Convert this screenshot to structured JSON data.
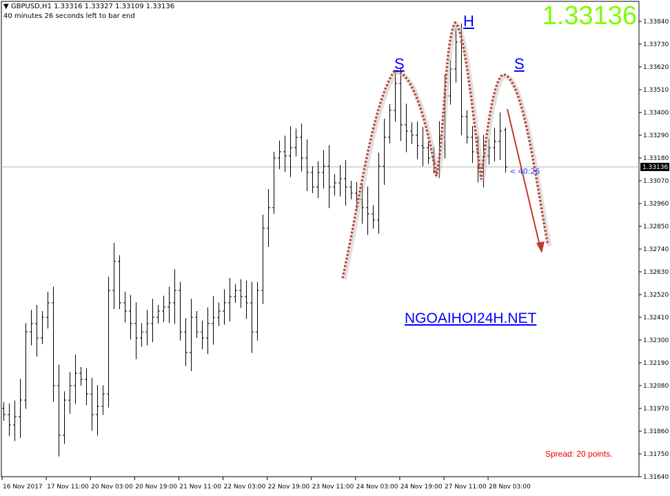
{
  "header": {
    "symbol_line": "GBPUSD,H1  1.33316 1.33327 1.33109 1.33136",
    "timer_line": "40 minutes 26 seconds left to bar end"
  },
  "big_price": "1.33136",
  "watermark": "NGOAIHOI24H.NET",
  "spread": "Spread: 20 points.",
  "bar_timer": "< 40:26",
  "pattern_labels": {
    "left_shoulder": "S",
    "head": "H",
    "right_shoulder": "S"
  },
  "colors": {
    "bull_text": "#7cfc00",
    "annotation": "#c0392b",
    "label": "#0000ff",
    "bars": "#000000"
  },
  "chart_data": {
    "type": "ohlc",
    "symbol": "GBPUSD",
    "timeframe": "H1",
    "last_bar": {
      "open": 1.33316,
      "high": 1.33327,
      "low": 1.33109,
      "close": 1.33136
    },
    "current_price": 1.33136,
    "ylim": [
      1.3164,
      1.3384
    ],
    "y_ticks": [
      "1.33840",
      "1.33730",
      "1.33620",
      "1.33510",
      "1.33400",
      "1.33290",
      "1.33180",
      "1.33070",
      "1.32960",
      "1.32850",
      "1.32740",
      "1.32630",
      "1.32520",
      "1.32410",
      "1.32300",
      "1.32190",
      "1.32080",
      "1.31970",
      "1.31860",
      "1.31750",
      "1.31640"
    ],
    "x_ticks": [
      "16 Nov 2017",
      "17 Nov 11:00",
      "20 Nov 03:00",
      "20 Nov 19:00",
      "21 Nov 11:00",
      "22 Nov 03:00",
      "22 Nov 19:00",
      "23 Nov 11:00",
      "24 Nov 03:00",
      "24 Nov 19:00",
      "27 Nov 11:00",
      "28 Nov 03:00"
    ],
    "closes": [
      1.3194,
      1.3189,
      1.3193,
      1.3201,
      1.3234,
      1.3238,
      1.3231,
      1.3241,
      1.3248,
      1.3208,
      1.3184,
      1.3201,
      1.3208,
      1.3214,
      1.3211,
      1.3204,
      1.3194,
      1.3198,
      1.3204,
      1.3254,
      1.3268,
      1.3248,
      1.3244,
      1.3238,
      1.3231,
      1.3234,
      1.3238,
      1.3241,
      1.3244,
      1.3246,
      1.3248,
      1.3254,
      1.3234,
      1.3224,
      1.3241,
      1.3234,
      1.3231,
      1.3238,
      1.3241,
      1.3244,
      1.3248,
      1.3251,
      1.3254,
      1.3251,
      1.3248,
      1.3234,
      1.3254,
      1.3284,
      1.3294,
      1.3318,
      1.3321,
      1.3319,
      1.3323,
      1.3328,
      1.3318,
      1.3311,
      1.3304,
      1.3311,
      1.3314,
      1.3304,
      1.3306,
      1.3308,
      1.3304,
      1.3301,
      1.3298,
      1.3294,
      1.3291,
      1.3288,
      1.3314,
      1.3328,
      1.3341,
      1.3354,
      1.3334,
      1.3331,
      1.3329,
      1.3324,
      1.3323,
      1.3318,
      1.3316,
      1.3328,
      1.3348,
      1.3361,
      1.3374,
      1.3338,
      1.3328,
      1.3321,
      1.3314,
      1.3319,
      1.3323,
      1.3326,
      1.3331,
      1.33136
    ]
  }
}
